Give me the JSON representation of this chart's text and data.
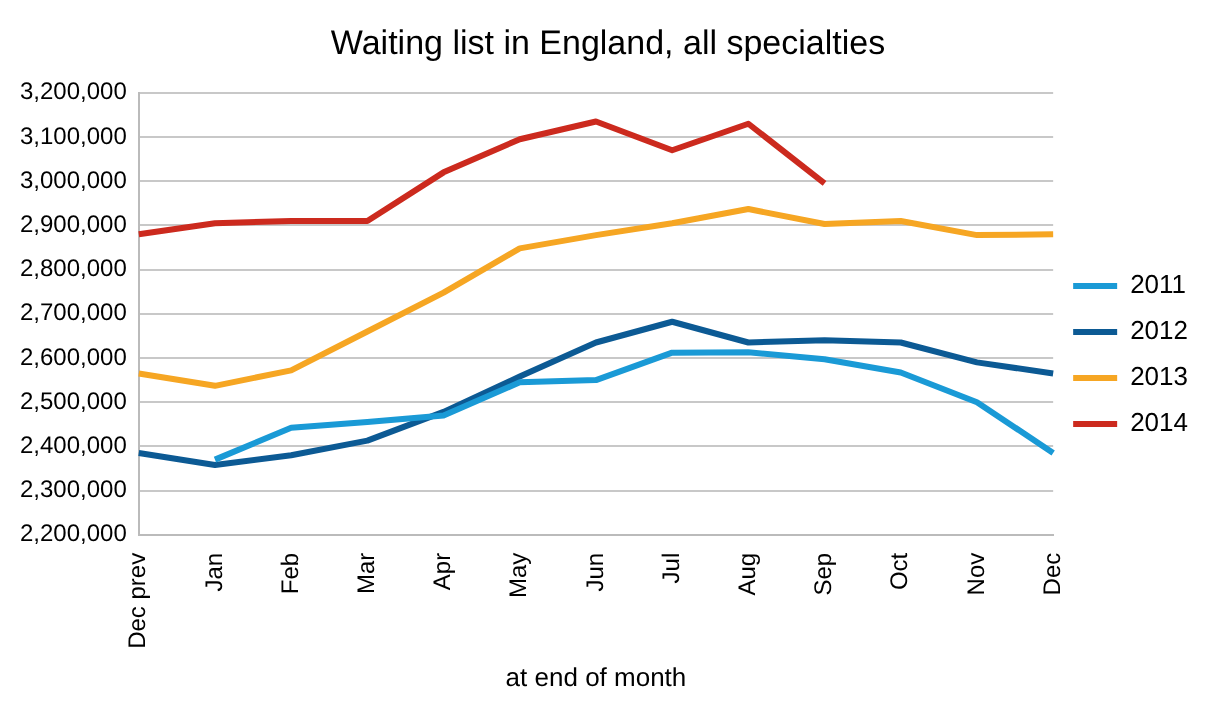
{
  "chart_data": {
    "type": "line",
    "title": "Waiting list in England, all specialties",
    "xlabel": "at end of month",
    "categories": [
      "Dec prev",
      "Jan",
      "Feb",
      "Mar",
      "Apr",
      "May",
      "Jun",
      "Jul",
      "Aug",
      "Sep",
      "Oct",
      "Nov",
      "Dec"
    ],
    "series": [
      {
        "name": "2011",
        "color": "#1a9ad6",
        "values": [
          null,
          2370000,
          2442000,
          2455000,
          2470000,
          2545000,
          2550000,
          2612000,
          2613000,
          2597000,
          2567000,
          2500000,
          2385000
        ]
      },
      {
        "name": "2012",
        "color": "#0c5a94",
        "values": [
          2385000,
          2358000,
          2380000,
          2413000,
          2478000,
          2558000,
          2635000,
          2682000,
          2635000,
          2640000,
          2635000,
          2590000,
          2565000
        ]
      },
      {
        "name": "2013",
        "color": "#f6a623",
        "values": [
          2565000,
          2537000,
          2572000,
          2660000,
          2748000,
          2848000,
          2878000,
          2905000,
          2937000,
          2903000,
          2910000,
          2878000,
          2880000
        ]
      },
      {
        "name": "2014",
        "color": "#cc2a1e",
        "values": [
          2880000,
          2905000,
          2910000,
          2910000,
          3020000,
          3095000,
          3135000,
          3070000,
          3130000,
          2995000,
          null,
          null,
          null
        ]
      }
    ],
    "ylim": [
      2200000,
      3200000
    ],
    "yticks": [
      {
        "value": 2200000,
        "label": "2,200,000"
      },
      {
        "value": 2300000,
        "label": "2,300,000"
      },
      {
        "value": 2400000,
        "label": "2,400,000"
      },
      {
        "value": 2500000,
        "label": "2,500,000"
      },
      {
        "value": 2600000,
        "label": "2,600,000"
      },
      {
        "value": 2700000,
        "label": "2,700,000"
      },
      {
        "value": 2800000,
        "label": "2,800,000"
      },
      {
        "value": 2900000,
        "label": "2,900,000"
      },
      {
        "value": 3000000,
        "label": "3,000,000"
      },
      {
        "value": 3100000,
        "label": "3,100,000"
      },
      {
        "value": 3200000,
        "label": "3,200,000"
      }
    ],
    "grid": "y",
    "legend": "right",
    "marker": "none",
    "line_style": "solid"
  }
}
